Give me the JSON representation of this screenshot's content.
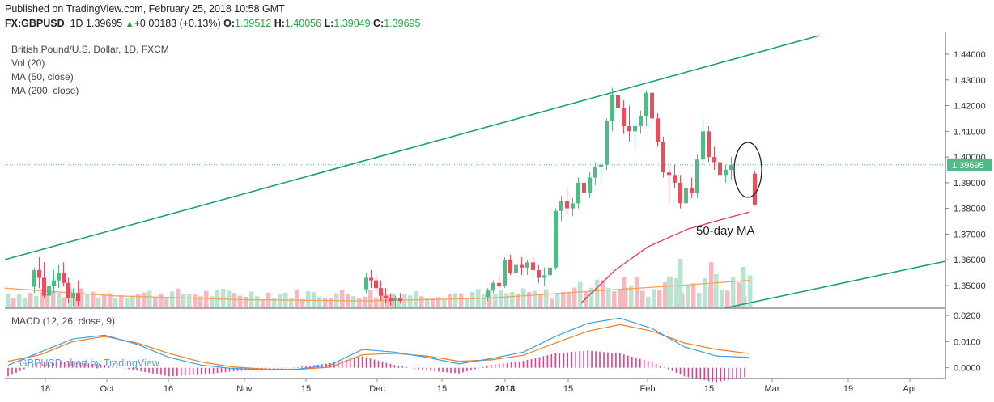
{
  "header": {
    "published": "Published on TradingView.com, February 25, 2018 10:58 GMT",
    "symbol": "FX:GBPUSD",
    "interval": "1D",
    "last": "1.39695",
    "change_arrow": "▲",
    "change": "+0.00183 (+0.13%)",
    "o_label": "O:",
    "o_value": "1.39512",
    "h_label": "H:",
    "h_value": "1.40056",
    "l_label": "L:",
    "l_value": "1.39049",
    "c_label": "C:",
    "c_value": "1.39695"
  },
  "legend": {
    "title": "British Pound/U.S. Dollar, 1D, FXCM",
    "vol": "Vol (20)",
    "ma50": "MA (50, close)",
    "ma200": "MA (200, close)",
    "macd": "MACD (12, 26, close, 9)"
  },
  "watermark": "GBPUSD chart by TradingView",
  "annotation": "50-day MA",
  "price_tag": "1.39695",
  "colors": {
    "up": "#53b987",
    "down": "#eb4d5c",
    "vol_up": "#b9e4cf",
    "vol_down": "#f7b9bf",
    "trendline": "#189f7f",
    "ma50": "#e8364f",
    "ma200": "#f7a35c",
    "macd": "#3a9ee8",
    "signal": "#f07b22",
    "hist": "#e33d8b"
  },
  "chart_data": [
    {
      "type": "candlestick",
      "title": "British Pound/U.S. Dollar, 1D, FXCM",
      "x_tick_labels": [
        "18",
        "Oct",
        "16",
        "Nov",
        "15",
        "Dec",
        "15",
        "2018",
        "15",
        "Feb",
        "15",
        "Mar",
        "19",
        "Apr"
      ],
      "y_tick_labels": [
        "1.44000",
        "1.43000",
        "1.42000",
        "1.41000",
        "1.40000",
        "1.39000",
        "1.38000",
        "1.37000",
        "1.36000",
        "1.35000"
      ],
      "ylim": [
        1.3415,
        1.4485
      ],
      "last_price": 1.39695,
      "series": [
        {
          "name": "visible_segment_1_ohlc",
          "values": [
            [
              1.3495,
              1.357,
              1.347,
              1.356
            ],
            [
              1.356,
              1.361,
              1.349,
              1.353
            ],
            [
              1.353,
              1.359,
              1.345,
              1.346
            ],
            [
              1.346,
              1.354,
              1.343,
              1.35
            ],
            [
              1.35,
              1.356,
              1.347,
              1.352
            ],
            [
              1.352,
              1.358,
              1.349,
              1.355
            ],
            [
              1.355,
              1.359,
              1.35,
              1.351
            ],
            [
              1.351,
              1.353,
              1.343,
              1.345
            ],
            [
              1.345,
              1.349,
              1.342,
              1.347
            ],
            [
              1.347,
              1.352,
              1.342,
              1.344
            ]
          ]
        },
        {
          "name": "visible_segment_2_ohlc",
          "values": [
            [
              1.3485,
              1.355,
              1.347,
              1.353
            ],
            [
              1.353,
              1.356,
              1.349,
              1.352
            ],
            [
              1.352,
              1.354,
              1.347,
              1.349
            ],
            [
              1.349,
              1.352,
              1.344,
              1.346
            ],
            [
              1.346,
              1.349,
              1.343,
              1.345
            ],
            [
              1.345,
              1.347,
              1.342,
              1.344
            ],
            [
              1.344,
              1.346,
              1.341,
              1.345
            ],
            [
              1.345,
              1.347,
              1.343,
              1.344
            ]
          ]
        },
        {
          "name": "visible_segment_3_ohlc",
          "values": [
            [
              1.3455,
              1.349,
              1.344,
              1.348
            ],
            [
              1.348,
              1.352,
              1.347,
              1.351
            ],
            [
              1.351,
              1.354,
              1.349,
              1.35
            ],
            [
              1.35,
              1.361,
              1.349,
              1.36
            ],
            [
              1.36,
              1.362,
              1.354,
              1.355
            ],
            [
              1.355,
              1.36,
              1.353,
              1.358
            ],
            [
              1.358,
              1.361,
              1.354,
              1.357
            ],
            [
              1.357,
              1.36,
              1.354,
              1.359
            ],
            [
              1.359,
              1.361,
              1.355,
              1.356
            ],
            [
              1.356,
              1.358,
              1.351,
              1.353
            ],
            [
              1.353,
              1.357,
              1.35,
              1.354
            ],
            [
              1.354,
              1.359,
              1.351,
              1.357
            ],
            [
              1.357,
              1.38,
              1.356,
              1.379
            ],
            [
              1.379,
              1.385,
              1.375,
              1.383
            ],
            [
              1.383,
              1.388,
              1.378,
              1.38
            ],
            [
              1.38,
              1.384,
              1.377,
              1.382
            ],
            [
              1.382,
              1.392,
              1.38,
              1.39
            ],
            [
              1.39,
              1.392,
              1.384,
              1.386
            ],
            [
              1.386,
              1.394,
              1.384,
              1.392
            ],
            [
              1.392,
              1.398,
              1.389,
              1.396
            ],
            [
              1.396,
              1.398,
              1.39,
              1.397
            ],
            [
              1.397,
              1.415,
              1.395,
              1.414
            ],
            [
              1.414,
              1.427,
              1.41,
              1.424
            ],
            [
              1.424,
              1.435,
              1.416,
              1.419
            ],
            [
              1.419,
              1.422,
              1.409,
              1.412
            ],
            [
              1.412,
              1.42,
              1.406,
              1.41
            ],
            [
              1.41,
              1.414,
              1.403,
              1.412
            ],
            [
              1.412,
              1.418,
              1.409,
              1.416
            ],
            [
              1.416,
              1.426,
              1.412,
              1.425
            ],
            [
              1.425,
              1.428,
              1.413,
              1.415
            ],
            [
              1.415,
              1.417,
              1.404,
              1.406
            ],
            [
              1.406,
              1.408,
              1.392,
              1.394
            ],
            [
              1.394,
              1.397,
              1.382,
              1.393
            ],
            [
              1.393,
              1.397,
              1.388,
              1.39
            ],
            [
              1.39,
              1.393,
              1.38,
              1.382
            ],
            [
              1.382,
              1.39,
              1.38,
              1.388
            ],
            [
              1.388,
              1.392,
              1.384,
              1.386
            ],
            [
              1.386,
              1.401,
              1.384,
              1.399
            ],
            [
              1.399,
              1.415,
              1.397,
              1.41
            ],
            [
              1.41,
              1.412,
              1.398,
              1.4
            ],
            [
              1.4,
              1.404,
              1.395,
              1.398
            ],
            [
              1.398,
              1.402,
              1.392,
              1.393
            ],
            [
              1.393,
              1.397,
              1.39,
              1.395
            ],
            [
              1.395,
              1.4,
              1.391,
              1.397
            ]
          ]
        },
        {
          "name": "last_visible_candle_ohlc",
          "values": [
            [
              1.3935,
              1.3945,
              1.381,
              1.3815
            ]
          ]
        },
        {
          "name": "ma50_close",
          "values": [
            1.3432,
            1.356,
            1.365,
            1.372,
            1.376,
            1.3785
          ]
        },
        {
          "name": "ma200_close",
          "values": [
            1.349,
            1.346,
            1.3445,
            1.344,
            1.345,
            1.348,
            1.35,
            1.352
          ]
        }
      ]
    },
    {
      "type": "line",
      "title": "MACD (12, 26, close, 9)",
      "y_tick_labels": [
        "0.0200",
        "0.0100",
        "0.0000"
      ],
      "ylim": [
        -0.0035,
        0.0225
      ],
      "series": [
        {
          "name": "macd",
          "values": [
            0.001,
            0.006,
            0.011,
            0.0125,
            0.009,
            0.004,
            0.001,
            -0.0003,
            -0.0008,
            -0.0005,
            0.001,
            0.007,
            0.006,
            0.004,
            0.0015,
            0.0035,
            0.006,
            0.012,
            0.017,
            0.019,
            0.015,
            0.008,
            0.0045,
            0.004
          ]
        },
        {
          "name": "signal",
          "values": [
            0.0025,
            0.005,
            0.01,
            0.012,
            0.0095,
            0.0055,
            0.0022,
            0.0003,
            -0.0005,
            -0.0006,
            0.0002,
            0.005,
            0.0055,
            0.0045,
            0.0025,
            0.003,
            0.0048,
            0.0095,
            0.014,
            0.0165,
            0.014,
            0.0095,
            0.007,
            0.0055
          ]
        }
      ]
    }
  ]
}
